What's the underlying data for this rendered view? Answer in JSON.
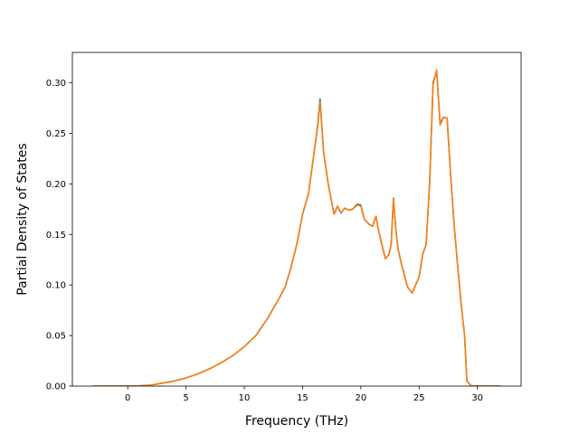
{
  "chart_data": {
    "type": "line",
    "title": "",
    "xlabel": "Frequency (THz)",
    "ylabel": "Partial Density of States",
    "xlim": [
      -4.75,
      33.75
    ],
    "ylim": [
      0.0,
      0.33
    ],
    "xticks": [
      0,
      5,
      10,
      15,
      20,
      25,
      30
    ],
    "xtick_labels": [
      "0",
      "5",
      "10",
      "15",
      "20",
      "25",
      "30"
    ],
    "yticks": [
      0.0,
      0.05,
      0.1,
      0.15,
      0.2,
      0.25,
      0.3
    ],
    "ytick_labels": [
      "0.00",
      "0.05",
      "0.10",
      "0.15",
      "0.20",
      "0.25",
      "0.30"
    ],
    "grid": false,
    "series": [
      {
        "color": "#1f77b4",
        "x": [
          -3,
          -2,
          -1,
          0,
          1,
          2,
          3,
          4,
          5,
          6,
          7,
          8,
          9,
          10,
          11,
          12,
          13,
          13.5,
          14,
          14.5,
          15,
          15.5,
          15.8,
          16.1,
          16.3,
          16.5,
          16.8,
          17.2,
          17.7,
          18.0,
          18.3,
          18.6,
          19.0,
          19.3,
          19.7,
          20.0,
          20.3,
          20.7,
          21.0,
          21.3,
          21.5,
          21.8,
          22.1,
          22.4,
          22.6,
          22.8,
          23.0,
          23.2,
          23.5,
          24.0,
          24.4,
          24.7,
          25.0,
          25.3,
          25.6,
          25.9,
          26.2,
          26.5,
          26.8,
          27.1,
          27.4,
          27.7,
          28.0,
          28.3,
          28.6,
          28.9,
          29.1,
          29.5,
          30.0,
          31.0,
          32.0
        ],
        "y": [
          0.0,
          0.0,
          0.0,
          0.0,
          0.0003,
          0.001,
          0.003,
          0.005,
          0.008,
          0.012,
          0.017,
          0.023,
          0.03,
          0.039,
          0.05,
          0.067,
          0.087,
          0.098,
          0.117,
          0.14,
          0.17,
          0.19,
          0.215,
          0.24,
          0.258,
          0.284,
          0.232,
          0.2,
          0.17,
          0.178,
          0.171,
          0.176,
          0.174,
          0.175,
          0.18,
          0.179,
          0.165,
          0.16,
          0.158,
          0.168,
          0.155,
          0.14,
          0.126,
          0.13,
          0.14,
          0.186,
          0.155,
          0.135,
          0.12,
          0.098,
          0.092,
          0.1,
          0.108,
          0.13,
          0.14,
          0.2,
          0.3,
          0.312,
          0.26,
          0.266,
          0.265,
          0.21,
          0.16,
          0.12,
          0.082,
          0.05,
          0.005,
          0.0,
          0.0,
          0.0,
          0.0
        ]
      },
      {
        "color": "#ff7f0e",
        "x": [
          -3,
          -2,
          -1,
          0,
          1,
          2,
          3,
          4,
          5,
          6,
          7,
          8,
          9,
          10,
          11,
          12,
          13,
          13.5,
          14,
          14.5,
          15,
          15.5,
          15.8,
          16.1,
          16.3,
          16.5,
          16.8,
          17.2,
          17.7,
          18.0,
          18.3,
          18.6,
          19.0,
          19.3,
          19.7,
          20.0,
          20.3,
          20.7,
          21.0,
          21.3,
          21.5,
          21.8,
          22.1,
          22.4,
          22.6,
          22.8,
          23.0,
          23.2,
          23.5,
          24.0,
          24.4,
          24.7,
          25.0,
          25.3,
          25.6,
          25.9,
          26.2,
          26.5,
          26.8,
          27.1,
          27.4,
          27.7,
          28.0,
          28.3,
          28.6,
          28.9,
          29.1,
          29.5,
          30.0,
          31.0,
          32.0
        ],
        "y": [
          0.0,
          0.0,
          0.0,
          0.0,
          0.0003,
          0.001,
          0.003,
          0.005,
          0.008,
          0.012,
          0.017,
          0.023,
          0.03,
          0.039,
          0.05,
          0.067,
          0.087,
          0.098,
          0.117,
          0.14,
          0.17,
          0.19,
          0.215,
          0.24,
          0.257,
          0.281,
          0.232,
          0.2,
          0.17,
          0.178,
          0.171,
          0.176,
          0.174,
          0.175,
          0.179,
          0.178,
          0.165,
          0.16,
          0.158,
          0.168,
          0.155,
          0.14,
          0.126,
          0.13,
          0.14,
          0.186,
          0.155,
          0.135,
          0.12,
          0.098,
          0.092,
          0.1,
          0.108,
          0.13,
          0.14,
          0.2,
          0.298,
          0.313,
          0.258,
          0.266,
          0.265,
          0.21,
          0.16,
          0.12,
          0.082,
          0.05,
          0.005,
          0.0,
          0.0,
          0.0,
          0.0
        ]
      }
    ]
  }
}
